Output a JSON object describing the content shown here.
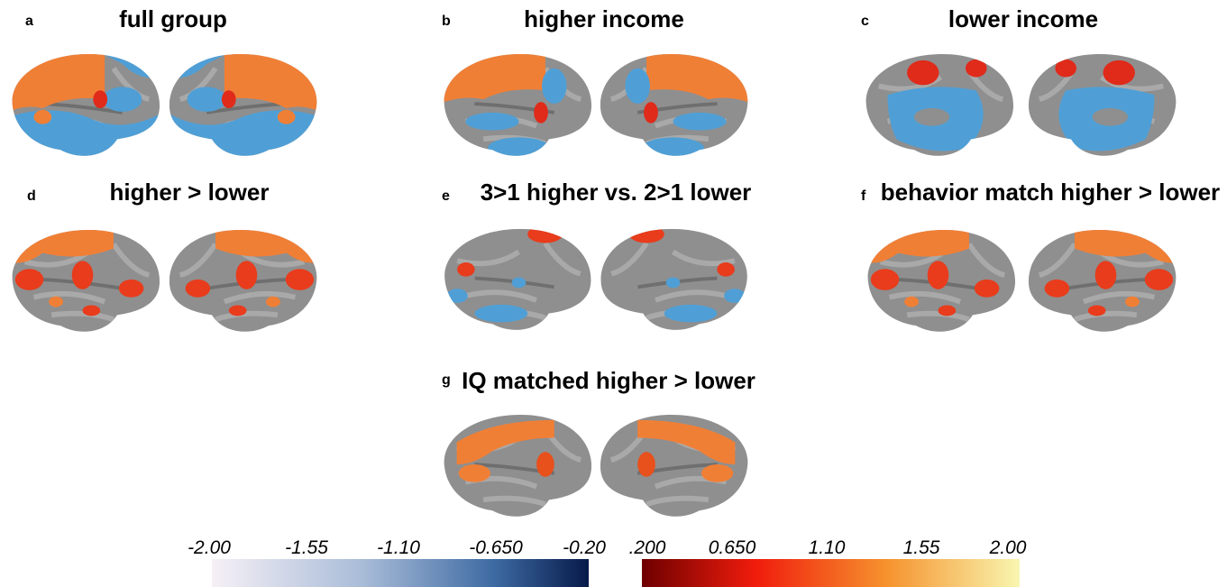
{
  "panels": [
    {
      "label": "a",
      "title": "full group"
    },
    {
      "label": "b",
      "title": "higher income"
    },
    {
      "label": "c",
      "title": "lower income"
    },
    {
      "label": "d",
      "title": "higher > lower"
    },
    {
      "label": "e",
      "title": "3>1 higher vs. 2>1 lower"
    },
    {
      "label": "f",
      "title": "behavior match higher > lower"
    },
    {
      "label": "g",
      "title": "IQ matched higher > lower"
    }
  ],
  "colorbar": {
    "negative_ticks": [
      "-2.00",
      "-1.55",
      "-1.10",
      "-0.650",
      "-0.20"
    ],
    "positive_ticks": [
      ".200",
      "0.650",
      "1.10",
      "1.55",
      "2.00"
    ]
  }
}
